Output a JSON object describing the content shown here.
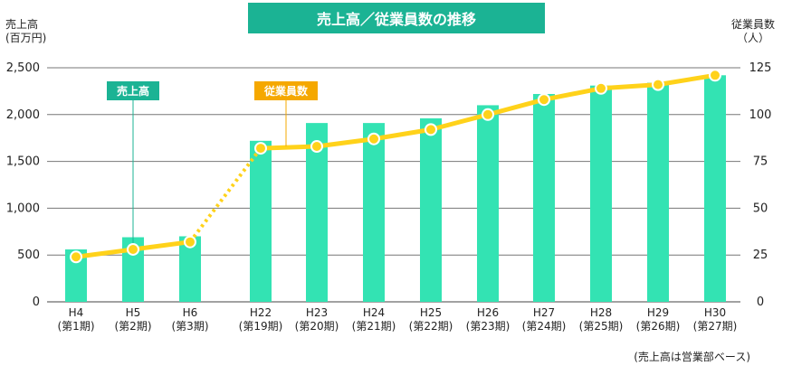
{
  "chart_data": {
    "type": "bar+line",
    "title": "売上高／従業員数の推移",
    "categories": [
      "H4\n(第1期)",
      "H5\n(第2期)",
      "H6\n(第3期)",
      "H22\n(第19期)",
      "H23\n(第20期)",
      "H24\n(第21期)",
      "H25\n(第22期)",
      "H26\n(第23期)",
      "H27\n(第24期)",
      "H28\n(第25期)",
      "H29\n(第26期)",
      "H30\n(第27期)"
    ],
    "series": [
      {
        "name": "売上高",
        "type": "bar",
        "axis": "left",
        "values": [
          560,
          690,
          700,
          1720,
          1910,
          1910,
          1960,
          2100,
          2220,
          2310,
          2340,
          2420
        ]
      },
      {
        "name": "従業員数",
        "type": "line",
        "axis": "right",
        "values": [
          24,
          28,
          32,
          82,
          83,
          87,
          92,
          100,
          108,
          114,
          116,
          121
        ]
      }
    ],
    "ylabel_left": "売上高\n(百万円)",
    "ylabel_right": "従業員数\n（人）",
    "ylim_left": [
      0,
      2500
    ],
    "ylim_right": [
      0,
      125
    ],
    "yticks_left": [
      "0",
      "500",
      "1,000",
      "1,500",
      "2,000",
      "2,500"
    ],
    "yticks_right": [
      "0",
      "25",
      "50",
      "75",
      "100",
      "125"
    ],
    "grid": true,
    "colors": {
      "bar": "#33e3b3",
      "line": "#ffd21a",
      "marker_fill": "#ffd21a",
      "marker_stroke": "#ffffff",
      "title_bg": "#1bb394",
      "bar_label_bg": "#1bb394",
      "line_label_bg": "#f5a800"
    },
    "note": "(売上高は営業部ベース)"
  }
}
